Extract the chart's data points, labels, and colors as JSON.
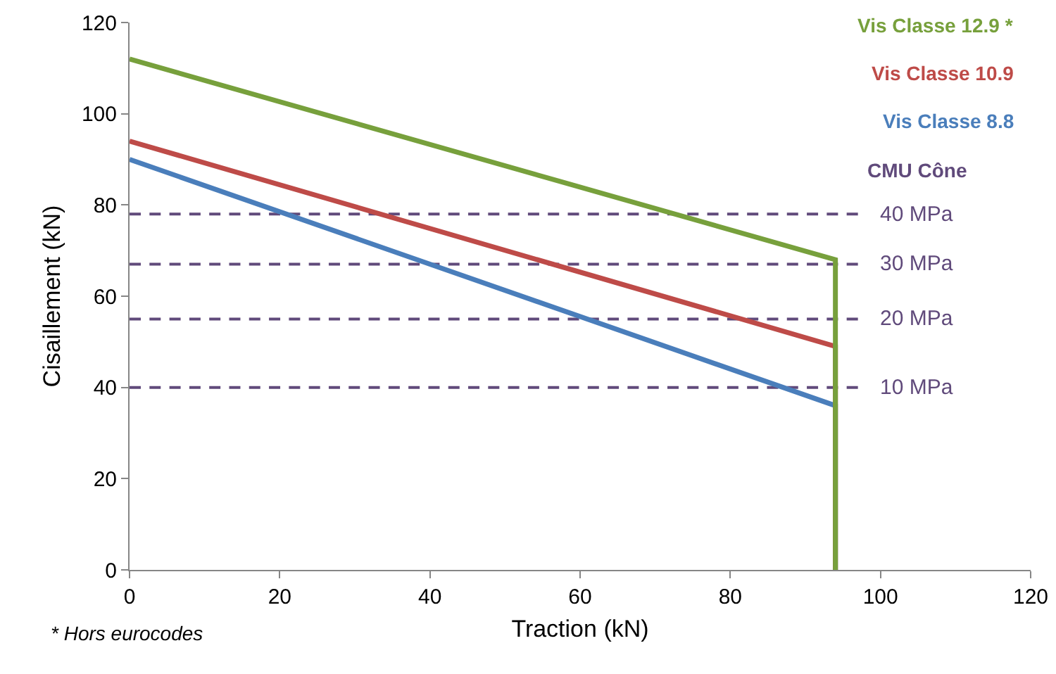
{
  "chart_data": {
    "type": "line",
    "xlabel": "Traction (kN)",
    "ylabel": "Cisaillement (kN)",
    "xlim": [
      0,
      120
    ],
    "xticks": [
      0,
      20,
      40,
      60,
      80,
      100,
      120
    ],
    "ylim": [
      0,
      120
    ],
    "yticks": [
      0,
      20,
      40,
      60,
      80,
      100,
      120
    ],
    "grid": false,
    "legend": "top right",
    "marker": "none",
    "line_style": "solid",
    "series": [
      {
        "name": "Vis Classe 12.9 *",
        "color": "#77a03c",
        "x": [
          0,
          94,
          94
        ],
        "values": [
          112,
          68,
          0
        ]
      },
      {
        "name": "Vis Classe 10.9",
        "color": "#be4b48",
        "x": [
          0,
          94,
          94
        ],
        "values": [
          94,
          49,
          0
        ]
      },
      {
        "name": "Vis Classe 8.8",
        "color": "#4a7ebb",
        "x": [
          0,
          94,
          94
        ],
        "values": [
          90,
          36,
          0
        ]
      },
      {
        "name": "40 MPa",
        "color": "#604a7b",
        "line_style": "dashed",
        "x": [
          0,
          97
        ],
        "values": [
          78,
          78
        ]
      },
      {
        "name": "30 MPa",
        "color": "#604a7b",
        "line_style": "dashed",
        "x": [
          0,
          97
        ],
        "values": [
          67,
          67
        ]
      },
      {
        "name": "20 MPa",
        "color": "#604a7b",
        "line_style": "dashed",
        "x": [
          0,
          97
        ],
        "values": [
          55,
          55
        ]
      },
      {
        "name": "10 MPa",
        "color": "#604a7b",
        "line_style": "dashed",
        "x": [
          0,
          97
        ],
        "values": [
          40,
          40
        ]
      }
    ],
    "annotations": [
      "CMU Cône",
      "* Hors eurocodes"
    ]
  }
}
